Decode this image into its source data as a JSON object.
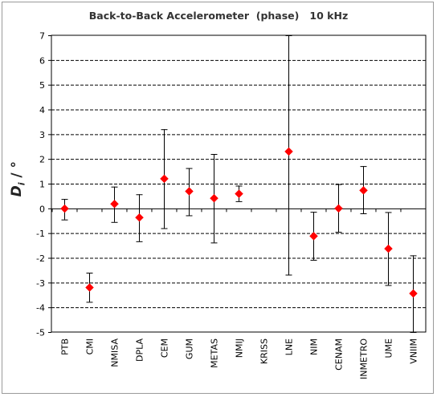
{
  "chart_data": {
    "type": "scatter",
    "title": "Back-to-Back Accelerometer  (phase)   10 kHz",
    "ylabel": "D_i / °",
    "xlabel": "",
    "ylim": [
      -5,
      7
    ],
    "yticks": [
      -5,
      -4,
      -3,
      -2,
      -1,
      0,
      1,
      2,
      3,
      4,
      5,
      6,
      7
    ],
    "grid": true,
    "legend": "none",
    "categories": [
      "PTB",
      "CMI",
      "NMISA",
      "DPLA",
      "CEM",
      "GUM",
      "METAS",
      "NMIJ",
      "KRISS",
      "LNE",
      "NIM",
      "CENAM",
      "INMETRO",
      "UME",
      "VNIIM"
    ],
    "series": [
      {
        "values": [
          -0.01,
          -3.2,
          0.18,
          -0.37,
          1.2,
          0.69,
          0.41,
          0.59,
          null,
          2.3,
          -1.12,
          0.0,
          0.73,
          -1.63,
          -3.44
        ],
        "err_low": [
          -0.45,
          -3.78,
          -0.55,
          -1.33,
          -0.8,
          -0.28,
          -1.38,
          0.29,
          null,
          -2.68,
          -2.08,
          -0.95,
          -0.2,
          -3.1,
          -5.0
        ],
        "err_high": [
          0.38,
          -2.6,
          0.88,
          0.57,
          3.2,
          1.63,
          2.2,
          0.92,
          null,
          7.0,
          -0.14,
          0.98,
          1.71,
          -0.15,
          -1.9
        ],
        "color": "#ff0000"
      }
    ]
  },
  "ylabel_main": "D",
  "ylabel_sub": "i",
  "ylabel_unit": " / °"
}
